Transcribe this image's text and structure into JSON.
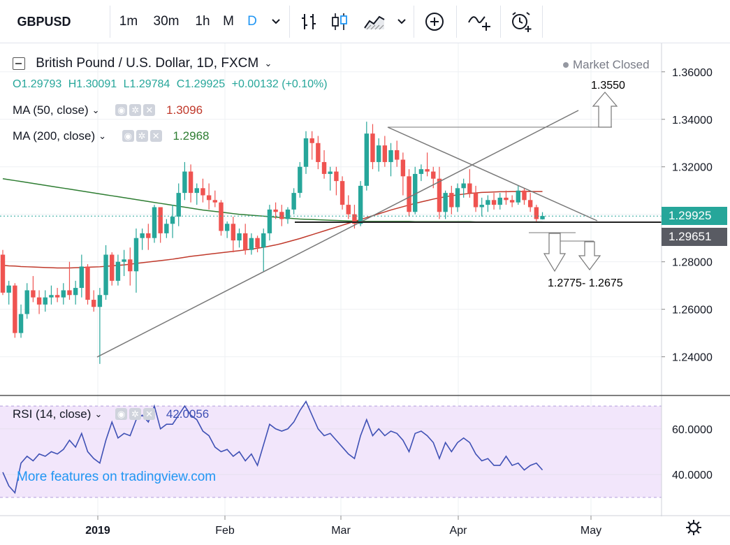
{
  "toolbar": {
    "symbol": "GBPUSD",
    "intervals": [
      "1m",
      "30m",
      "1h",
      "M",
      "D"
    ],
    "active_interval": "D",
    "icons": [
      "chevron-down-icon",
      "bar-style-icon",
      "candle-style-icon",
      "area-style-icon",
      "chevron-down-icon",
      "plus-circle-icon",
      "compare-icon",
      "alert-icon"
    ]
  },
  "header": {
    "title": "British Pound / U.S. Dollar, 1D, FXCM",
    "status": "Market Closed",
    "ohlc": {
      "o": "O1.29793",
      "h": "H1.30091",
      "l": "L1.29784",
      "c": "C1.29925",
      "chg": "+0.00132 (+0.10%)"
    }
  },
  "indicators": {
    "ma50": {
      "label": "MA (50, close)",
      "value": "1.3096",
      "color": "#c0392b"
    },
    "ma200": {
      "label": "MA (200, close)",
      "value": "1.2968",
      "color": "#2e7d32"
    },
    "rsi": {
      "label": "RSI (14, close)",
      "value": "42.0056",
      "color": "#3f51b5"
    }
  },
  "watermark": "More features on tradingview.com",
  "annotations": {
    "target_up": "1.3550",
    "target_down": "1.2775- 1.2675"
  },
  "price_tags": {
    "last": "1.29925",
    "support": "1.29651"
  },
  "colors": {
    "up": "#26a69a",
    "down": "#ef5350",
    "accent": "#2196f3"
  },
  "chart_data": [
    {
      "type": "candlestick",
      "price_axis": {
        "ylim": [
          1.224,
          1.372
        ],
        "ticks": [
          "1.36000",
          "1.34000",
          "1.32000",
          "1.30000",
          "1.28000",
          "1.26000",
          "1.24000"
        ]
      },
      "time_axis": {
        "labels": [
          "2019",
          "Feb",
          "Mar",
          "Apr",
          "May"
        ]
      },
      "ohlc": [
        [
          1.283,
          1.285,
          1.266,
          1.267
        ],
        [
          1.267,
          1.272,
          1.262,
          1.27
        ],
        [
          1.27,
          1.271,
          1.248,
          1.25
        ],
        [
          1.25,
          1.262,
          1.248,
          1.258
        ],
        [
          1.258,
          1.271,
          1.256,
          1.268
        ],
        [
          1.268,
          1.274,
          1.263,
          1.265
        ],
        [
          1.265,
          1.268,
          1.258,
          1.262
        ],
        [
          1.262,
          1.268,
          1.259,
          1.265
        ],
        [
          1.265,
          1.27,
          1.262,
          1.266
        ],
        [
          1.266,
          1.269,
          1.263,
          1.265
        ],
        [
          1.265,
          1.271,
          1.262,
          1.268
        ],
        [
          1.268,
          1.28,
          1.264,
          1.266
        ],
        [
          1.266,
          1.272,
          1.262,
          1.269
        ],
        [
          1.269,
          1.283,
          1.265,
          1.278
        ],
        [
          1.278,
          1.279,
          1.262,
          1.264
        ],
        [
          1.264,
          1.268,
          1.259,
          1.261
        ],
        [
          1.261,
          1.269,
          1.237,
          1.266
        ],
        [
          1.266,
          1.287,
          1.264,
          1.283
        ],
        [
          1.283,
          1.284,
          1.27,
          1.272
        ],
        [
          1.272,
          1.283,
          1.27,
          1.28
        ],
        [
          1.28,
          1.285,
          1.274,
          1.281
        ],
        [
          1.281,
          1.286,
          1.27,
          1.276
        ],
        [
          1.276,
          1.294,
          1.267,
          1.29
        ],
        [
          1.29,
          1.294,
          1.285,
          1.292
        ],
        [
          1.292,
          1.296,
          1.285,
          1.29
        ],
        [
          1.29,
          1.304,
          1.288,
          1.303
        ],
        [
          1.303,
          1.303,
          1.288,
          1.292
        ],
        [
          1.292,
          1.298,
          1.29,
          1.296
        ],
        [
          1.296,
          1.304,
          1.29,
          1.299
        ],
        [
          1.299,
          1.313,
          1.295,
          1.309
        ],
        [
          1.309,
          1.322,
          1.306,
          1.318
        ],
        [
          1.318,
          1.321,
          1.305,
          1.309
        ],
        [
          1.309,
          1.313,
          1.304,
          1.311
        ],
        [
          1.311,
          1.315,
          1.305,
          1.308
        ],
        [
          1.308,
          1.313,
          1.302,
          1.306
        ],
        [
          1.306,
          1.31,
          1.303,
          1.305
        ],
        [
          1.305,
          1.306,
          1.291,
          1.293
        ],
        [
          1.293,
          1.297,
          1.29,
          1.296
        ],
        [
          1.296,
          1.299,
          1.284,
          1.289
        ],
        [
          1.289,
          1.294,
          1.286,
          1.292
        ],
        [
          1.292,
          1.296,
          1.283,
          1.285
        ],
        [
          1.285,
          1.292,
          1.283,
          1.29
        ],
        [
          1.29,
          1.291,
          1.284,
          1.286
        ],
        [
          1.286,
          1.294,
          1.276,
          1.292
        ],
        [
          1.292,
          1.304,
          1.289,
          1.302
        ],
        [
          1.302,
          1.305,
          1.298,
          1.301
        ],
        [
          1.301,
          1.304,
          1.295,
          1.298
        ],
        [
          1.298,
          1.303,
          1.296,
          1.302
        ],
        [
          1.302,
          1.311,
          1.3,
          1.309
        ],
        [
          1.309,
          1.322,
          1.307,
          1.32
        ],
        [
          1.32,
          1.335,
          1.317,
          1.332
        ],
        [
          1.332,
          1.335,
          1.323,
          1.33
        ],
        [
          1.33,
          1.333,
          1.319,
          1.322
        ],
        [
          1.322,
          1.327,
          1.315,
          1.317
        ],
        [
          1.317,
          1.32,
          1.31,
          1.318
        ],
        [
          1.318,
          1.32,
          1.308,
          1.314
        ],
        [
          1.314,
          1.316,
          1.302,
          1.304
        ],
        [
          1.304,
          1.308,
          1.298,
          1.3
        ],
        [
          1.3,
          1.304,
          1.294,
          1.296
        ],
        [
          1.296,
          1.314,
          1.295,
          1.312
        ],
        [
          1.312,
          1.339,
          1.31,
          1.334
        ],
        [
          1.334,
          1.338,
          1.319,
          1.322
        ],
        [
          1.322,
          1.332,
          1.318,
          1.329
        ],
        [
          1.329,
          1.333,
          1.32,
          1.322
        ],
        [
          1.322,
          1.33,
          1.316,
          1.327
        ],
        [
          1.327,
          1.331,
          1.32,
          1.323
        ],
        [
          1.323,
          1.326,
          1.308,
          1.316
        ],
        [
          1.316,
          1.319,
          1.299,
          1.301
        ],
        [
          1.301,
          1.32,
          1.3,
          1.317
        ],
        [
          1.317,
          1.321,
          1.314,
          1.319
        ],
        [
          1.319,
          1.326,
          1.316,
          1.318
        ],
        [
          1.318,
          1.32,
          1.311,
          1.315
        ],
        [
          1.315,
          1.32,
          1.298,
          1.301
        ],
        [
          1.301,
          1.31,
          1.298,
          1.309
        ],
        [
          1.309,
          1.312,
          1.3,
          1.303
        ],
        [
          1.303,
          1.313,
          1.301,
          1.311
        ],
        [
          1.311,
          1.315,
          1.307,
          1.313
        ],
        [
          1.313,
          1.319,
          1.307,
          1.309
        ],
        [
          1.309,
          1.312,
          1.301,
          1.303
        ],
        [
          1.303,
          1.307,
          1.299,
          1.304
        ],
        [
          1.304,
          1.308,
          1.301,
          1.306
        ],
        [
          1.306,
          1.309,
          1.302,
          1.304
        ],
        [
          1.304,
          1.309,
          1.302,
          1.307
        ],
        [
          1.307,
          1.31,
          1.304,
          1.306
        ],
        [
          1.306,
          1.308,
          1.303,
          1.305
        ],
        [
          1.305,
          1.312,
          1.304,
          1.31
        ],
        [
          1.31,
          1.311,
          1.304,
          1.306
        ],
        [
          1.306,
          1.309,
          1.301,
          1.303
        ],
        [
          1.303,
          1.304,
          1.297,
          1.298
        ],
        [
          1.2979,
          1.3009,
          1.2978,
          1.2993
        ]
      ],
      "series": [
        {
          "name": "MA (50, close)",
          "values": [
            1.2785,
            1.2783,
            1.2782,
            1.278,
            1.2779,
            1.2778,
            1.2777,
            1.2776,
            1.2775,
            1.2774,
            1.2774,
            1.2774,
            1.2775,
            1.2776,
            1.2777,
            1.2778,
            1.2779,
            1.2781,
            1.2783,
            1.2785,
            1.2787,
            1.279,
            1.2793,
            1.2796,
            1.2799,
            1.2802,
            1.2805,
            1.2808,
            1.2811,
            1.2815,
            1.2819,
            1.2823,
            1.2826,
            1.2829,
            1.2832,
            1.2835,
            1.2838,
            1.2841,
            1.2844,
            1.2847,
            1.285,
            1.2853,
            1.2857,
            1.2861,
            1.2866,
            1.2871,
            1.2877,
            1.2884,
            1.2891,
            1.2898,
            1.2906,
            1.2914,
            1.2922,
            1.293,
            1.2938,
            1.2946,
            1.2954,
            1.2962,
            1.297,
            1.2978,
            1.2986,
            1.2994,
            1.3002,
            1.301,
            1.3018,
            1.3025,
            1.3032,
            1.3039,
            1.3046,
            1.3052,
            1.3058,
            1.3064,
            1.3069,
            1.3074,
            1.3078,
            1.3082,
            1.3085,
            1.3088,
            1.309,
            1.3092,
            1.3093,
            1.3094,
            1.3095,
            1.3095,
            1.3096,
            1.3096,
            1.3096,
            1.3096,
            1.3096,
            1.3096
          ]
        },
        {
          "name": "MA (200, close)",
          "values": [
            1.315,
            1.3146,
            1.3142,
            1.3138,
            1.3134,
            1.313,
            1.3126,
            1.3122,
            1.3118,
            1.3114,
            1.311,
            1.3106,
            1.3102,
            1.3098,
            1.3094,
            1.309,
            1.3086,
            1.3082,
            1.3078,
            1.3074,
            1.307,
            1.3066,
            1.3062,
            1.3058,
            1.3054,
            1.305,
            1.3046,
            1.3042,
            1.3038,
            1.3034,
            1.303,
            1.3026,
            1.3022,
            1.3018,
            1.3015,
            1.3012,
            1.3009,
            1.3006,
            1.3003,
            1.3,
            1.2998,
            1.2996,
            1.2994,
            1.2992,
            1.299,
            1.2988,
            1.2986,
            1.2984,
            1.2982,
            1.298,
            1.2979,
            1.2978,
            1.2977,
            1.2976,
            1.2975,
            1.2974,
            1.2973,
            1.2972,
            1.2971,
            1.297,
            1.297,
            1.297,
            1.297,
            1.297,
            1.297,
            1.297,
            1.297,
            1.297,
            1.2969,
            1.2969,
            1.2969,
            1.2969,
            1.2969,
            1.2969,
            1.2969,
            1.2969,
            1.2969,
            1.2969,
            1.2968,
            1.2968,
            1.2968,
            1.2968,
            1.2968,
            1.2968,
            1.2968,
            1.2968,
            1.2968,
            1.2968,
            1.2968,
            1.2968
          ]
        }
      ]
    },
    {
      "type": "line",
      "title": "RSI (14, close)",
      "ylim": [
        22,
        74
      ],
      "ticks": [
        "60.0000",
        "40.0000"
      ],
      "values": [
        41,
        35,
        32,
        45,
        48,
        46,
        49,
        48,
        50,
        49,
        51,
        55,
        52,
        58,
        50,
        47,
        45,
        55,
        63,
        56,
        58,
        57,
        64,
        66,
        63,
        70,
        60,
        62,
        62,
        66,
        70,
        66,
        64,
        59,
        57,
        52,
        50,
        51,
        48,
        50,
        46,
        49,
        44,
        53,
        62,
        60,
        59,
        60,
        63,
        68,
        72,
        66,
        60,
        57,
        58,
        55,
        52,
        49,
        47,
        57,
        64,
        57,
        60,
        57,
        59,
        58,
        55,
        50,
        58,
        59,
        57,
        54,
        47,
        54,
        50,
        54,
        56,
        54,
        49,
        46,
        47,
        44,
        44,
        48,
        44,
        45,
        42,
        44,
        45,
        42
      ]
    }
  ]
}
